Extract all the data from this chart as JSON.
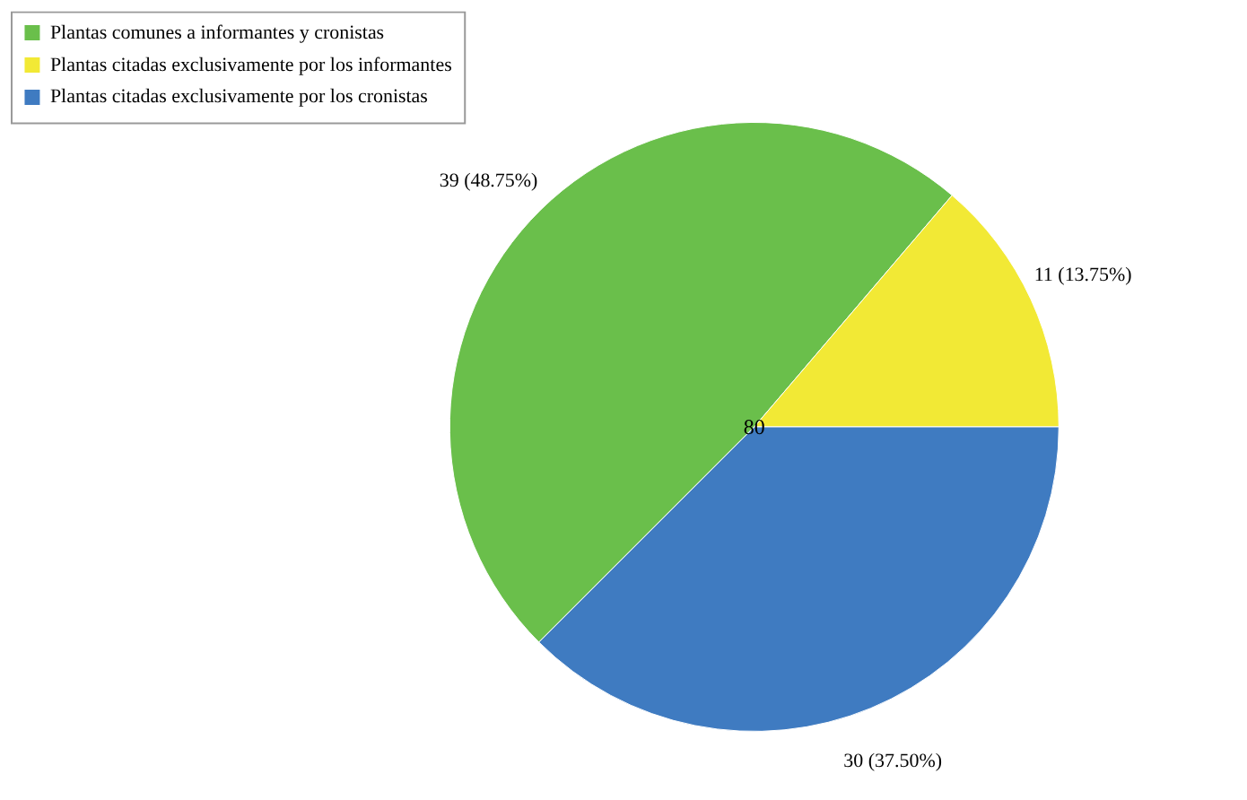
{
  "chart_data": {
    "type": "pie",
    "categories": [
      "Plantas comunes a informantes y cronistas",
      "Plantas citadas exclusivamente por los informantes",
      "Plantas citadas exclusivamente por los cronistas"
    ],
    "values": [
      39,
      11,
      30
    ],
    "colors": [
      "#6abf4b",
      "#f2e935",
      "#3f7bc1"
    ],
    "value_labels": [
      "39 (48.75%)",
      "11 (13.75%)",
      "30 (37.50%)"
    ],
    "annotations": [
      "80"
    ],
    "legend": "top left"
  }
}
